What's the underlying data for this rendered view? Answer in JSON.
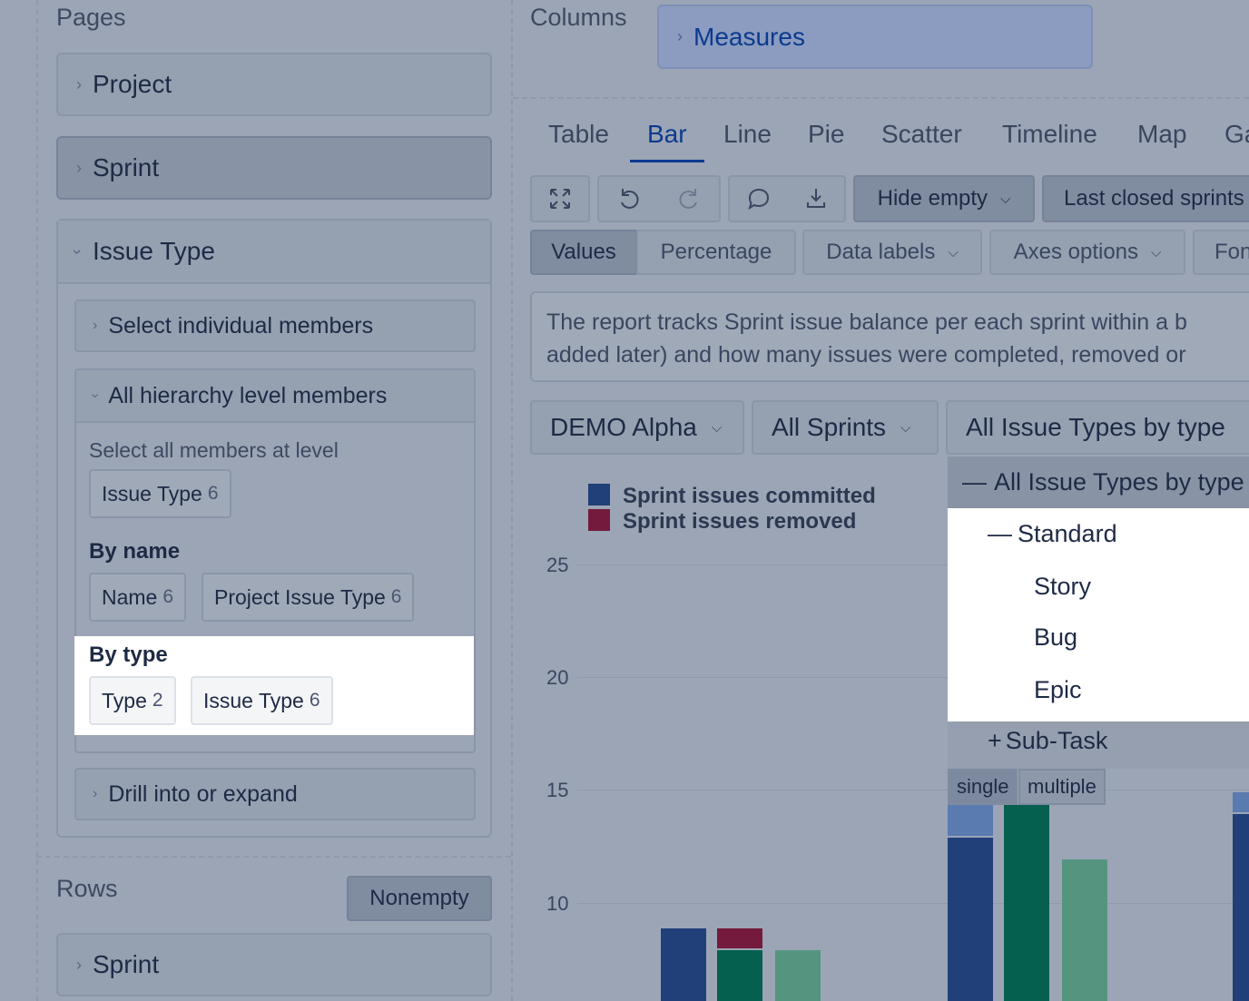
{
  "pages": {
    "title": "Pages",
    "project_label": "Project",
    "sprint_label": "Sprint",
    "issue_type": {
      "label": "Issue Type",
      "select_individual": "Select individual members",
      "all_hierarchy": "All hierarchy level members",
      "select_all_at_level": "Select all members at level",
      "level_chip": {
        "label": "Issue Type",
        "count": "6"
      },
      "by_name_label": "By name",
      "by_name_chips": [
        {
          "label": "Name",
          "count": "6"
        },
        {
          "label": "Project Issue Type",
          "count": "6"
        }
      ],
      "by_type_label": "By type",
      "by_type_chips": [
        {
          "label": "Type",
          "count": "2"
        },
        {
          "label": "Issue Type",
          "count": "6"
        }
      ],
      "drill": "Drill into or expand"
    }
  },
  "rows": {
    "title": "Rows",
    "nonempty_label": "Nonempty",
    "sprint_label": "Sprint"
  },
  "columns": {
    "title": "Columns",
    "measures_label": "Measures"
  },
  "view_tabs": [
    "Table",
    "Bar",
    "Line",
    "Pie",
    "Scatter",
    "Timeline",
    "Map",
    "Ga"
  ],
  "active_tab": "Bar",
  "toolbar": {
    "hide_empty": "Hide empty",
    "last_closed": "Last closed sprints",
    "values": "Values",
    "percentage": "Percentage",
    "data_labels": "Data labels",
    "axes_options": "Axes options",
    "font": "Font"
  },
  "description": {
    "line1": "The report tracks Sprint issue balance per each sprint within a b",
    "line2": "added later) and how many issues were completed, removed or"
  },
  "filters": {
    "project": "DEMO Alpha",
    "sprint": "All Sprints",
    "issue_type": "All Issue Types by type"
  },
  "dropdown": {
    "header": "All Issue Types by type",
    "standard": "Standard",
    "items": [
      "Story",
      "Bug",
      "Epic"
    ],
    "subtask": "Sub-Task",
    "mode_single": "single",
    "mode_multiple": "multiple"
  },
  "chart_data": {
    "type": "bar",
    "series": [
      {
        "name": "Sprint issues committed",
        "color": "#213f78"
      },
      {
        "name": "Sprint issues removed",
        "color": "#731a3d"
      }
    ],
    "y_ticks": [
      "25",
      "20",
      "15",
      "10"
    ],
    "colors": {
      "committed": "#213f78",
      "committed_light": "#5a7bb0",
      "removed": "#731a3d",
      "completed": "#06604f",
      "completed_light": "#559580"
    }
  }
}
